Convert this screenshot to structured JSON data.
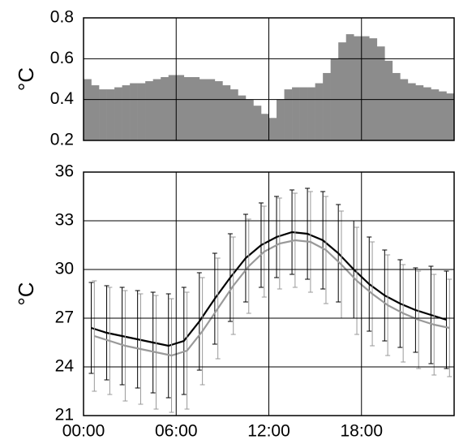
{
  "chart_data": [
    {
      "type": "histogram",
      "ylabel": "°C",
      "color": "#8c8c8c",
      "bins": [
        0,
        0.5,
        1,
        1.5,
        2,
        2.5,
        3,
        3.5,
        4,
        4.5,
        5,
        5.5,
        6,
        6.5,
        7,
        7.5,
        8,
        8.5,
        9,
        9.5,
        10,
        10.5,
        11,
        11.5,
        12,
        12.5,
        13,
        13.5,
        14,
        14.5,
        15,
        15.5,
        16,
        16.5,
        17,
        17.5,
        18,
        18.5,
        19,
        19.5,
        20,
        20.5,
        21,
        21.5,
        22,
        22.5,
        23,
        23.5,
        24
      ],
      "values": [
        0.5,
        0.47,
        0.45,
        0.45,
        0.46,
        0.47,
        0.48,
        0.48,
        0.49,
        0.5,
        0.51,
        0.52,
        0.52,
        0.51,
        0.51,
        0.5,
        0.5,
        0.49,
        0.47,
        0.45,
        0.42,
        0.4,
        0.37,
        0.33,
        0.31,
        0.4,
        0.45,
        0.46,
        0.46,
        0.46,
        0.48,
        0.53,
        0.6,
        0.68,
        0.72,
        0.71,
        0.71,
        0.7,
        0.66,
        0.59,
        0.53,
        0.5,
        0.48,
        0.47,
        0.46,
        0.45,
        0.44,
        0.43
      ],
      "xlim": [
        0,
        24
      ],
      "xticks": [
        0,
        6,
        12,
        18
      ],
      "ylim": [
        0.2,
        0.8
      ],
      "yticks": [
        0.2,
        0.4,
        0.6,
        0.8
      ],
      "grid": true
    },
    {
      "type": "line",
      "ylabel": "°C",
      "series": [
        {
          "color": "#000000",
          "x": [
            0.5,
            1.5,
            2.5,
            3.5,
            4.5,
            5.5,
            6.5,
            7.5,
            8.5,
            9.5,
            10.5,
            11.5,
            12.5,
            13.5,
            14.5,
            15.5,
            16.5,
            17.5,
            18.5,
            19.5,
            20.5,
            21.5,
            22.5,
            23.5
          ],
          "values": [
            26.4,
            26.1,
            25.9,
            25.7,
            25.5,
            25.3,
            25.6,
            26.8,
            28.2,
            29.5,
            30.7,
            31.5,
            32.0,
            32.3,
            32.2,
            31.8,
            31.0,
            30.0,
            29.1,
            28.4,
            27.9,
            27.5,
            27.2,
            26.9
          ],
          "errors": [
            2.8,
            2.9,
            3.0,
            3.0,
            3.1,
            3.2,
            3.3,
            3.0,
            2.8,
            2.7,
            2.7,
            2.6,
            2.5,
            2.6,
            2.8,
            3.0,
            3.0,
            3.0,
            2.9,
            2.8,
            2.7,
            2.6,
            3.0,
            3.0
          ]
        },
        {
          "color": "#999999",
          "x": [
            0.7,
            1.7,
            2.7,
            3.7,
            4.7,
            5.7,
            6.7,
            7.7,
            8.7,
            9.7,
            10.7,
            11.7,
            12.7,
            13.7,
            14.7,
            15.7,
            16.7,
            17.7,
            18.7,
            19.7,
            20.7,
            21.7,
            22.7,
            23.7
          ],
          "values": [
            25.9,
            25.6,
            25.3,
            25.1,
            24.9,
            24.7,
            25.0,
            26.2,
            27.6,
            29.0,
            30.2,
            31.1,
            31.6,
            31.8,
            31.7,
            31.2,
            30.3,
            29.3,
            28.5,
            27.8,
            27.3,
            26.9,
            26.6,
            26.4
          ],
          "errors": [
            3.4,
            3.3,
            3.4,
            3.4,
            3.5,
            3.5,
            3.6,
            3.3,
            3.1,
            3.0,
            2.9,
            2.8,
            2.8,
            2.9,
            3.1,
            3.3,
            3.3,
            3.3,
            3.2,
            3.1,
            3.0,
            3.0,
            3.1,
            3.0
          ]
        }
      ],
      "xlim": [
        0,
        24
      ],
      "xticks": [
        {
          "value": 0,
          "label": "00:00"
        },
        {
          "value": 6,
          "label": "06:00"
        },
        {
          "value": 12,
          "label": "12:00"
        },
        {
          "value": 18,
          "label": "18:00"
        }
      ],
      "ylim": [
        21,
        36
      ],
      "yticks": [
        21,
        24,
        27,
        30,
        33,
        36
      ],
      "grid": true
    }
  ]
}
